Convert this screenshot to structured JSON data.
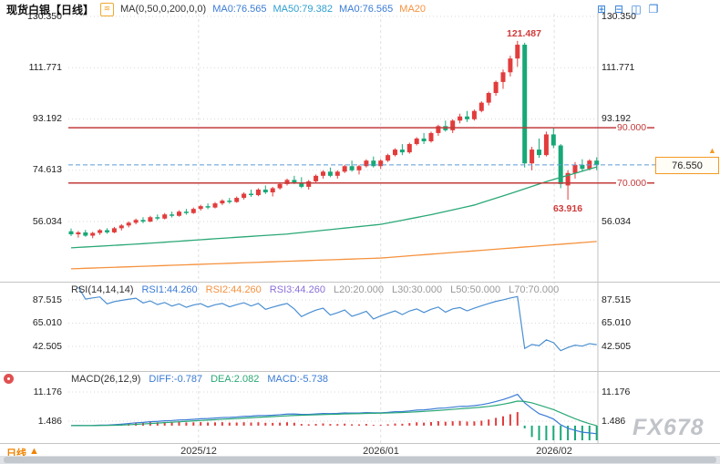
{
  "header": {
    "title": "现货白银【日线】",
    "ma_icon_glyph": "≋",
    "formula": "MA(0,50,0,200,0,0)",
    "ma0_a": "MA0:76.565",
    "ma50": "MA50:79.382",
    "ma0_b": "MA0:76.565",
    "ma20": "MA20",
    "layout_icons": [
      {
        "name": "grid-layout-icon",
        "glyph": "⊞"
      },
      {
        "name": "split-horizontal-icon",
        "glyph": "⊟"
      },
      {
        "name": "split-vertical-icon",
        "glyph": "◫"
      },
      {
        "name": "single-window-icon",
        "glyph": "❐"
      }
    ]
  },
  "axis_labels": {
    "main_left": [
      "130.350",
      "111.771",
      "93.192",
      "74.613",
      "56.034"
    ],
    "main_right": [
      "130.350",
      "111.771",
      "93.192",
      "56.034"
    ],
    "rsi": [
      "87.515",
      "65.010",
      "42.505"
    ],
    "macd": [
      "11.176",
      "1.486"
    ]
  },
  "main_chart": {
    "price_tag": "76.550",
    "tag_arrow": "▲"
  },
  "rsi_header": {
    "label": "RSI(14,14,14)",
    "rsi1": "RSI1:44.260",
    "rsi2": "RSI2:44.260",
    "rsi3": "RSI3:44.260",
    "l20": "L20:20.000",
    "l30": "L30:30.000",
    "l50": "L50:50.000",
    "l70": "L70:70.000"
  },
  "macd_header": {
    "label": "MACD(26,12,9)",
    "diff": "DIFF:-0.787",
    "dea": "DEA:2.082",
    "macd": "MACD:-5.738"
  },
  "bottom": {
    "period": "日线",
    "period_arrow": "▲"
  },
  "watermark": "FX678",
  "colors": {
    "up_candle": "#e23c3c",
    "down_candle": "#18a878",
    "ma_green": "#2aa876",
    "ma_orange": "#f5923e",
    "rsi_line": "#4a8fd2",
    "diff_line": "#3a7bd5",
    "dea_line": "#2aa876",
    "hline_red": "#c23b3b",
    "dashed_blue": "#5b9bd5",
    "tag_orange": "#f59a23",
    "grid": "#e0e0e0",
    "dotted_grid": "#d9d9d9",
    "separator": "#c4c4c4"
  },
  "chart_data": [
    {
      "type": "candlestick",
      "symbol": "现货白银",
      "period": "日线",
      "y_ticks": [
        130.35,
        111.771,
        93.192,
        74.613,
        56.034
      ],
      "x_gridlines": [
        {
          "label": "2025/12",
          "candle_index": 17.7
        },
        {
          "label": "2026/01",
          "candle_index": 43
        },
        {
          "label": "2026/02",
          "candle_index": 67.1
        }
      ],
      "hlines": [
        {
          "value": 90.0,
          "label": "90.000"
        },
        {
          "value": 70.0,
          "label": "70.000"
        }
      ],
      "current_price": 76.55,
      "current_price_label": "76.550",
      "annotations": {
        "high": {
          "index": 62,
          "value": 121.487,
          "label": "121.487"
        },
        "low": {
          "index": 69,
          "value": 63.916,
          "label": "63.916"
        }
      },
      "ma_green_points": [
        [
          0,
          46.5
        ],
        [
          10,
          48
        ],
        [
          20,
          49.8
        ],
        [
          30,
          51.5
        ],
        [
          43,
          55
        ],
        [
          50,
          58.5
        ],
        [
          56,
          62
        ],
        [
          62,
          67
        ],
        [
          66,
          70.5
        ],
        [
          70,
          73.5
        ],
        [
          73,
          75.8
        ]
      ],
      "ma_orange_points": [
        [
          0,
          38.9
        ],
        [
          43,
          42.8
        ],
        [
          73,
          48.8
        ]
      ],
      "candles": [
        [
          52.5,
          53.5,
          50.8,
          51.4
        ],
        [
          51.4,
          52.6,
          50.2,
          52.1
        ],
        [
          52.1,
          53.0,
          50.5,
          50.9
        ],
        [
          50.9,
          52.3,
          50.0,
          51.9
        ],
        [
          51.9,
          53.3,
          51.2,
          52.9
        ],
        [
          52.9,
          53.6,
          51.6,
          52.1
        ],
        [
          52.1,
          54.1,
          51.8,
          53.6
        ],
        [
          53.6,
          55.1,
          52.8,
          54.6
        ],
        [
          54.6,
          56.1,
          53.9,
          55.6
        ],
        [
          55.6,
          57.1,
          55.0,
          56.6
        ],
        [
          56.6,
          57.6,
          55.4,
          56.0
        ],
        [
          56.0,
          58.1,
          55.8,
          57.6
        ],
        [
          57.6,
          58.6,
          56.5,
          57.1
        ],
        [
          57.1,
          59.1,
          56.8,
          58.6
        ],
        [
          58.6,
          59.6,
          57.5,
          58.1
        ],
        [
          58.1,
          60.1,
          57.8,
          59.6
        ],
        [
          59.6,
          60.6,
          58.5,
          59.1
        ],
        [
          59.1,
          61.1,
          58.8,
          60.6
        ],
        [
          60.6,
          62.1,
          60.0,
          61.6
        ],
        [
          61.6,
          62.6,
          60.5,
          61.1
        ],
        [
          61.1,
          63.1,
          60.8,
          62.6
        ],
        [
          62.6,
          64.1,
          62.0,
          63.6
        ],
        [
          63.6,
          64.6,
          62.5,
          63.1
        ],
        [
          63.1,
          65.1,
          62.8,
          64.6
        ],
        [
          64.6,
          66.6,
          64.0,
          66.1
        ],
        [
          66.1,
          67.6,
          65.0,
          65.6
        ],
        [
          65.6,
          68.1,
          65.2,
          67.6
        ],
        [
          67.6,
          69.1,
          66.0,
          66.6
        ],
        [
          66.6,
          68.6,
          65.1,
          68.1
        ],
        [
          68.1,
          70.1,
          67.6,
          69.6
        ],
        [
          69.6,
          71.6,
          69.1,
          71.1
        ],
        [
          71.1,
          72.6,
          69.6,
          70.1
        ],
        [
          70.1,
          72.1,
          68.1,
          68.6
        ],
        [
          68.6,
          71.1,
          67.6,
          70.6
        ],
        [
          70.6,
          73.1,
          70.1,
          72.6
        ],
        [
          72.6,
          74.6,
          71.6,
          74.1
        ],
        [
          74.1,
          75.6,
          72.1,
          72.6
        ],
        [
          72.6,
          74.6,
          71.6,
          74.1
        ],
        [
          74.1,
          76.6,
          73.6,
          76.1
        ],
        [
          76.1,
          78.1,
          74.1,
          74.6
        ],
        [
          74.6,
          76.6,
          73.1,
          76.1
        ],
        [
          76.1,
          78.6,
          75.6,
          78.1
        ],
        [
          78.1,
          79.6,
          75.6,
          76.1
        ],
        [
          76.1,
          78.6,
          75.1,
          78.1
        ],
        [
          78.1,
          80.6,
          77.6,
          80.1
        ],
        [
          80.1,
          82.6,
          79.6,
          82.1
        ],
        [
          82.1,
          84.1,
          80.1,
          81.1
        ],
        [
          81.1,
          84.6,
          80.6,
          84.1
        ],
        [
          84.1,
          86.6,
          83.6,
          86.1
        ],
        [
          86.1,
          88.1,
          84.1,
          85.1
        ],
        [
          85.1,
          88.6,
          84.6,
          88.1
        ],
        [
          88.1,
          91.1,
          87.1,
          90.6
        ],
        [
          90.6,
          92.6,
          88.6,
          89.1
        ],
        [
          89.1,
          93.1,
          88.1,
          92.6
        ],
        [
          92.6,
          95.1,
          91.6,
          94.1
        ],
        [
          94.1,
          96.1,
          92.1,
          93.1
        ],
        [
          93.1,
          96.6,
          92.6,
          96.1
        ],
        [
          96.1,
          99.6,
          95.6,
          99.1
        ],
        [
          99.1,
          103.1,
          98.1,
          102.6
        ],
        [
          102.6,
          107.1,
          101.6,
          106.6
        ],
        [
          106.6,
          111.1,
          104.1,
          110.1
        ],
        [
          110.1,
          116.1,
          108.6,
          115.1
        ],
        [
          115.1,
          121.487,
          112.1,
          120.1
        ],
        [
          120.1,
          120.8,
          75.6,
          77.1
        ],
        [
          77.1,
          83.1,
          74.6,
          82.1
        ],
        [
          82.1,
          86.1,
          79.1,
          80.1
        ],
        [
          80.1,
          88.6,
          79.6,
          87.6
        ],
        [
          87.6,
          90.1,
          82.6,
          83.6
        ],
        [
          83.6,
          84.1,
          68.1,
          69.6
        ],
        [
          69.1,
          74.6,
          63.916,
          73.6
        ],
        [
          73.6,
          77.6,
          71.6,
          76.6
        ],
        [
          76.6,
          78.6,
          74.1,
          75.1
        ],
        [
          75.1,
          78.6,
          74.6,
          78.1
        ],
        [
          78.1,
          79.3,
          74.6,
          76.55
        ]
      ]
    },
    {
      "type": "line",
      "name": "RSI",
      "params": [
        14,
        14,
        14
      ],
      "y_ticks": [
        87.515,
        65.01,
        42.505
      ],
      "last_values": {
        "rsi1": 44.26,
        "rsi2": 44.26,
        "rsi3": 44.26
      },
      "levels": {
        "L20": 20.0,
        "L30": 30.0,
        "L50": 50.0,
        "L70": 70.0
      },
      "derived": "RSI(14) line computed from candlestick closes"
    },
    {
      "type": "line+histogram",
      "name": "MACD",
      "params": [
        26,
        12,
        9
      ],
      "y_ticks": [
        11.176,
        1.486
      ],
      "last_values": {
        "diff": -0.787,
        "dea": 2.082,
        "macd": -5.738
      },
      "derived": "MACD(26,12,9) DIFF/DEA lines and 2*(DIFF-DEA) histogram computed from candlestick closes"
    }
  ]
}
